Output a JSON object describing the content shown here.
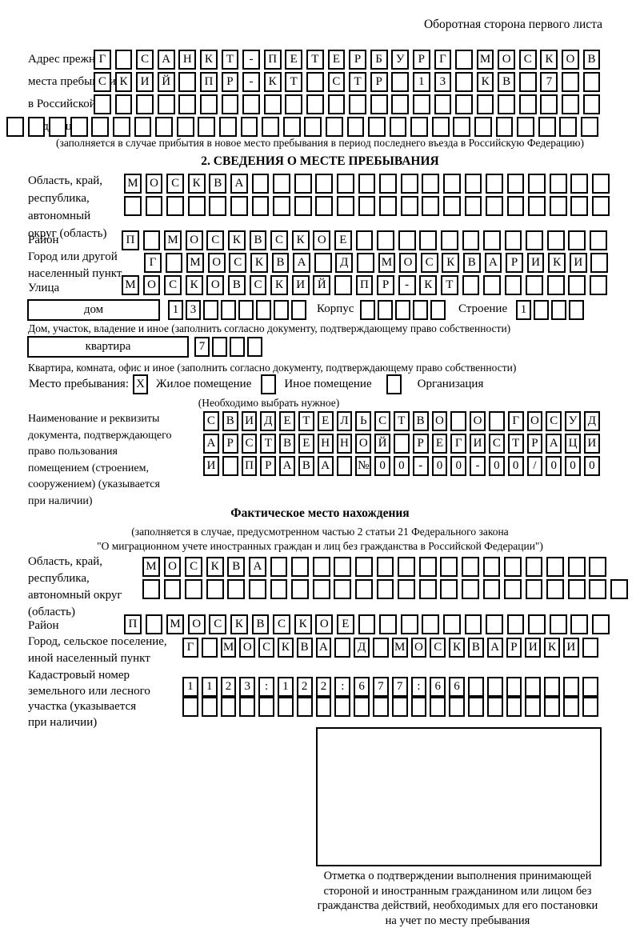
{
  "page_note": "Оборотная сторона первого листа",
  "prev_address": {
    "label": "Адрес прежнего\nместа пребывания\nв Российской\nФедерации",
    "rows": [
      {
        "chars": "Г САНКТ-ПЕТЕРБУРГ МОСКОВ",
        "n": 24
      },
      {
        "chars": "СКИЙ ПР-КТ СТР 13 КВ 7",
        "n": 24
      },
      {
        "chars": "",
        "n": 24
      },
      {
        "chars": "",
        "n": 28
      }
    ],
    "note": "(заполняется в случае прибытия в новое место пребывания в период последнего въезда в Российскую Федерацию)"
  },
  "section2": {
    "heading": "2. СВЕДЕНИЯ О МЕСТЕ ПРЕБЫВАНИЯ",
    "region": {
      "label": "Область, край,\nреспублика,\nавтономный\nокруг (область)",
      "rows": [
        {
          "chars": "МОСКВА",
          "n": 23
        },
        {
          "chars": "",
          "n": 23
        }
      ]
    },
    "district": {
      "label": "Район",
      "row": {
        "chars": "П МОСКВСКОЕ",
        "n": 23
      }
    },
    "city": {
      "label": "Город или другой\nнаселенный пункт",
      "row": {
        "chars": "Г МОСКВА Д МОСКВАРИКИ",
        "n": 22
      }
    },
    "street": {
      "label": "Улица",
      "row": {
        "chars": "МОСКОВСКИЙ ПР-КТ",
        "n": 23
      }
    },
    "house": {
      "box_label": "дом",
      "row": {
        "chars": "13",
        "n": 8
      },
      "korpus_label": "Корпус",
      "korpus_row": {
        "chars": "",
        "n": 5
      },
      "stroenie_label": "Строение",
      "stroenie_row": {
        "chars": "1",
        "n": 4
      }
    },
    "house_note": "Дом, участок, владение и иное (заполнить согласно документу, подтверждающему право собственности)",
    "apartment": {
      "box_label": "квартира",
      "row": {
        "chars": "7",
        "n": 4
      }
    },
    "apartment_note": "Квартира, комната, офис и иное (заполнить согласно документу, подтверждающему право собственности)",
    "stay_type": {
      "label": "Место пребывания:",
      "options": [
        {
          "label": "Жилое помещение",
          "checked": "X"
        },
        {
          "label": "Иное помещение",
          "checked": ""
        },
        {
          "label": "Организация",
          "checked": ""
        }
      ],
      "note": "(Необходимо выбрать нужное)"
    },
    "document": {
      "label": "Наименование и реквизиты\nдокумента, подтверждающего\nправо пользования\nпомещением (строением,\nсооружением) (указывается\nпри наличии)",
      "rows": [
        {
          "chars": "СВИДЕТЕЛЬСТВО О ГОСУД",
          "n": 21
        },
        {
          "chars": "АРСТВЕННОЙ РЕГИСТРАЦИ",
          "n": 21
        },
        {
          "chars": "И ПРАВА №00-00-00/000",
          "n": 21
        }
      ]
    }
  },
  "actual_location": {
    "heading": "Фактическое место нахождения",
    "note": "(заполняется в случае, предусмотренном частью 2 статьи 21 Федерального закона\n\"О миграционном учете иностранных граждан и лиц без гражданства в Российской Федерации\")",
    "region": {
      "label": "Область, край,\nреспублика,\nавтономный округ\n(область)",
      "rows": [
        {
          "chars": "МОСКВА",
          "n": 22
        },
        {
          "chars": "",
          "n": 23
        }
      ]
    },
    "district": {
      "label": "Район",
      "row": {
        "chars": "П МОСКВСКОЕ",
        "n": 23
      }
    },
    "city": {
      "label": "Город, сельское поселение,\nиной населенный пункт",
      "row": {
        "chars": "Г МОСКВА Д МОСКВАРИКИ",
        "n": 22
      }
    },
    "cadastre": {
      "label": "Кадастровый номер\nземельного или лесного\nучастка (указывается\nпри наличии)",
      "rows": [
        {
          "chars": "1123:122:677:66",
          "n": 22
        },
        {
          "chars": "",
          "n": 22
        }
      ]
    },
    "stamp_caption": "Отметка о подтверждении выполнения принимающей\nстороной и иностранным гражданином или лицом без\nгражданства действий, необходимых для его постановки\nна учет по месту пребывания"
  }
}
